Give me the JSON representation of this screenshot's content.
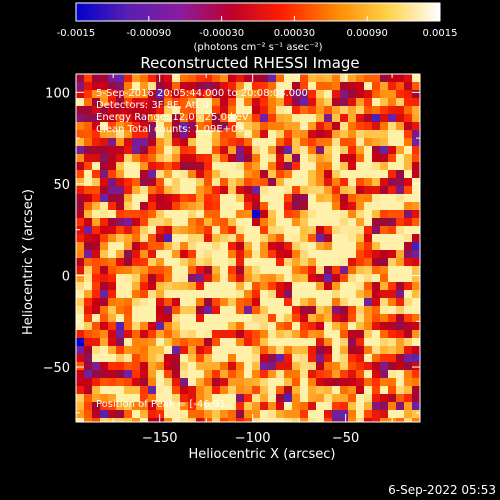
{
  "colorbar": {
    "ticks": [
      "-0.0015",
      "-0.00090",
      "-0.00030",
      "0.00030",
      "0.00090",
      "0.0015"
    ],
    "unit_label": "(photons cm⁻² s⁻¹ asec⁻²)",
    "colors": [
      "#0000d0",
      "#5a1fb0",
      "#8a1ca0",
      "#c0002a",
      "#ff2000",
      "#ff8a00",
      "#ffd24a",
      "#ffffff"
    ]
  },
  "chart_data": {
    "type": "heatmap",
    "title": "Reconstructed RHESSI Image",
    "xlabel": "Heliocentric X (arcsec)",
    "ylabel": "Heliocentric Y (arcsec)",
    "xlim": [
      -195,
      -10
    ],
    "ylim": [
      -80,
      110
    ],
    "xticks": [
      -150,
      -100,
      -50
    ],
    "yticks": [
      -50,
      0,
      50,
      100
    ],
    "value_range": [
      -0.0015,
      0.0015
    ],
    "annotations": [
      "5-Sep-2016 20:05:44.000 to 20:08:08.000",
      "Detectors: 3F 8F, Att 0",
      "Energy Range: 12.0 - 25.0 keV",
      "Clean    Total counts: 1.09E+03"
    ],
    "peak_label": "Position of Peak = [-46.91,",
    "grid": false
  },
  "footer": {
    "timestamp": "6-Sep-2022 05:53"
  }
}
